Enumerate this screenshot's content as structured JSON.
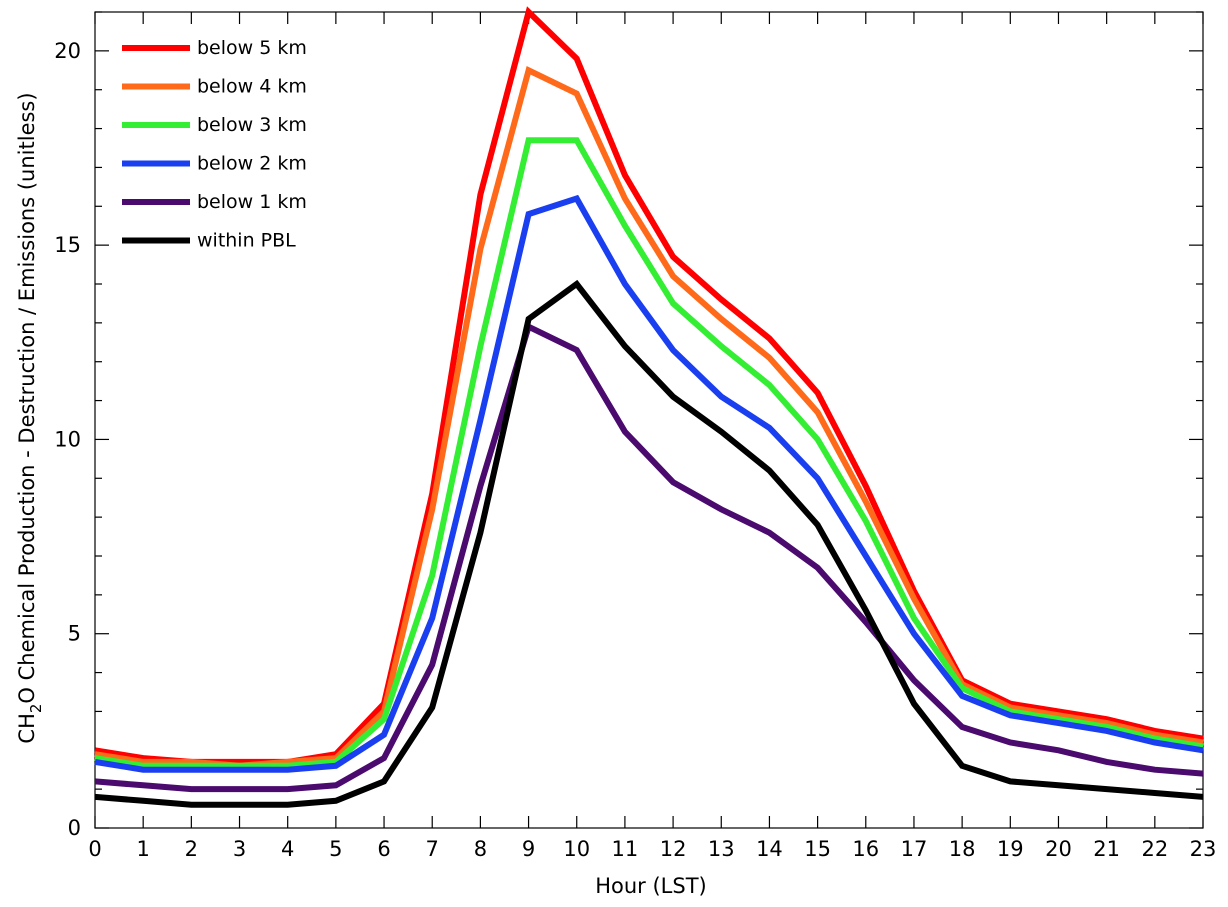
{
  "chart_data": {
    "type": "line",
    "xlabel": "Hour (LST)",
    "ylabel": {
      "prefix": "CH",
      "subscript": "2",
      "suffix": "O Chemical Production - Destruction / Emissions (unitless)"
    },
    "xlim": [
      0,
      23
    ],
    "ylim": [
      0,
      21
    ],
    "x": [
      0,
      1,
      2,
      3,
      4,
      5,
      6,
      7,
      8,
      9,
      10,
      11,
      12,
      13,
      14,
      15,
      16,
      17,
      18,
      19,
      20,
      21,
      22,
      23
    ],
    "x_ticks": [
      0,
      1,
      2,
      3,
      4,
      5,
      6,
      7,
      8,
      9,
      10,
      11,
      12,
      13,
      14,
      15,
      16,
      17,
      18,
      19,
      20,
      21,
      22,
      23
    ],
    "y_ticks_major": [
      0,
      5,
      10,
      15,
      20
    ],
    "y_tick_labels": [
      "0",
      "5",
      "10",
      "15",
      "20"
    ],
    "y_ticks_minor_step": 1,
    "legend_position": "top-left",
    "series": [
      {
        "name": "below 5 km",
        "color": "#ff0000",
        "values": [
          2.0,
          1.8,
          1.7,
          1.7,
          1.7,
          1.9,
          3.2,
          8.6,
          16.3,
          21.0,
          19.8,
          16.8,
          14.7,
          13.6,
          12.6,
          11.2,
          8.8,
          6.1,
          3.8,
          3.2,
          3.0,
          2.8,
          2.5,
          2.3
        ]
      },
      {
        "name": "below 4 km",
        "color": "#ff6a1a",
        "values": [
          1.9,
          1.7,
          1.7,
          1.6,
          1.7,
          1.8,
          3.0,
          8.2,
          14.9,
          19.5,
          18.9,
          16.2,
          14.2,
          13.1,
          12.1,
          10.7,
          8.4,
          5.9,
          3.7,
          3.1,
          2.9,
          2.7,
          2.4,
          2.2
        ]
      },
      {
        "name": "below 3 km",
        "color": "#33ee33",
        "values": [
          1.8,
          1.6,
          1.6,
          1.6,
          1.6,
          1.7,
          2.8,
          6.5,
          12.4,
          17.7,
          17.7,
          15.5,
          13.5,
          12.4,
          11.4,
          10.0,
          7.9,
          5.4,
          3.6,
          3.0,
          2.8,
          2.6,
          2.3,
          2.1
        ]
      },
      {
        "name": "below 2 km",
        "color": "#1a3ff0",
        "values": [
          1.7,
          1.5,
          1.5,
          1.5,
          1.5,
          1.6,
          2.4,
          5.4,
          10.5,
          15.8,
          16.2,
          14.0,
          12.3,
          11.1,
          10.3,
          9.0,
          7.0,
          5.0,
          3.4,
          2.9,
          2.7,
          2.5,
          2.2,
          2.0
        ]
      },
      {
        "name": "below 1 km",
        "color": "#4b0a6e",
        "values": [
          1.2,
          1.1,
          1.0,
          1.0,
          1.0,
          1.1,
          1.8,
          4.2,
          8.8,
          12.9,
          12.3,
          10.2,
          8.9,
          8.2,
          7.6,
          6.7,
          5.3,
          3.8,
          2.6,
          2.2,
          2.0,
          1.7,
          1.5,
          1.4
        ]
      },
      {
        "name": "within PBL",
        "color": "#000000",
        "values": [
          0.8,
          0.7,
          0.6,
          0.6,
          0.6,
          0.7,
          1.2,
          3.1,
          7.6,
          13.1,
          14.0,
          12.4,
          11.1,
          10.2,
          9.2,
          7.8,
          5.6,
          3.2,
          1.6,
          1.2,
          1.1,
          1.0,
          0.9,
          0.8
        ]
      }
    ]
  }
}
